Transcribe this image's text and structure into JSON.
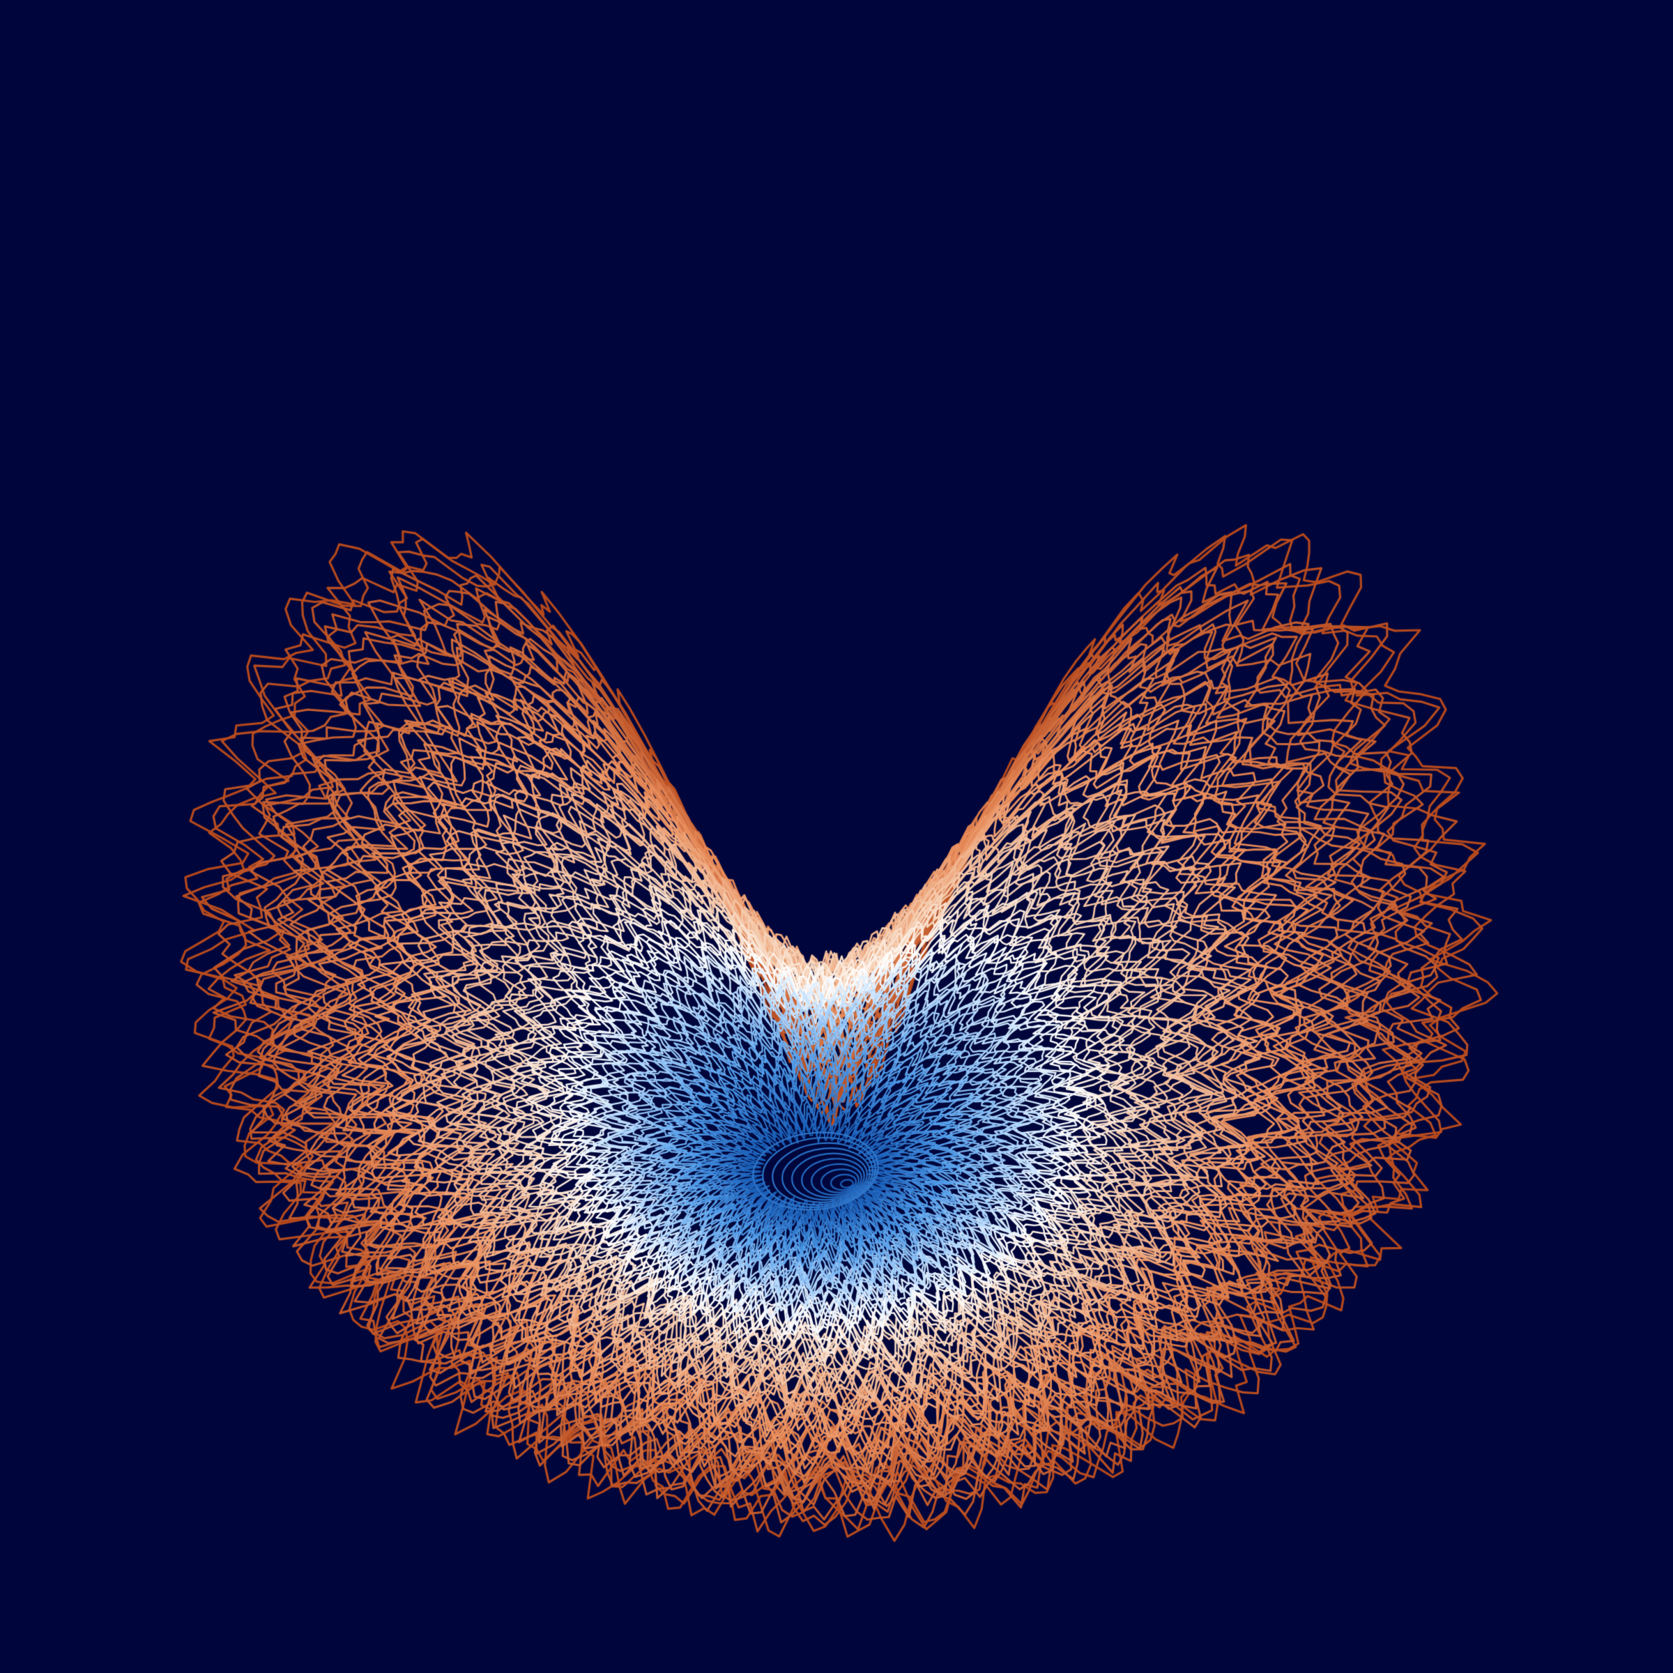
{
  "artwork": {
    "kind": "generative contour rings forming a heart / torus shape",
    "colors": {
      "background": "#00063b",
      "outer": "#b5481c",
      "mid": "#e98f5e",
      "light": "#f6d0b4",
      "white": "#ffffff",
      "pale_blue": "#b9dcff",
      "blue": "#4f9be9",
      "deep_blue": "#1a5fb8"
    },
    "ring_count": 90,
    "jitter_level": 0.5
  }
}
